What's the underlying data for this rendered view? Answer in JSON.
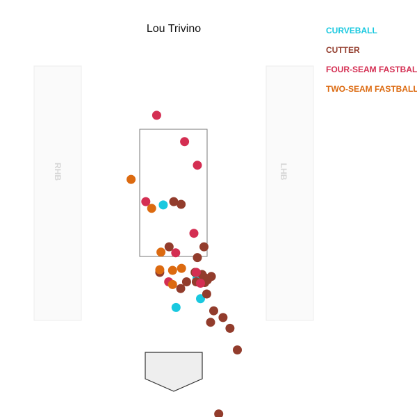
{
  "colors": {
    "CURVEBALL": "#19c8df",
    "CUTTER": "#923c2c",
    "FOUR-SEAM FASTBALL": "#d42e52",
    "TWO-SEAM FASTBALL": "#dc6a10"
  },
  "chart_data": {
    "type": "scatter",
    "title": "Lou Trivino",
    "xlabel": "",
    "ylabel": "",
    "xlim": [
      -2.5,
      2.5
    ],
    "ylim": [
      0,
      5
    ],
    "grid": false,
    "legend_position": "top-right",
    "batter_boxes": [
      "RHB",
      "LHB"
    ],
    "legend": [
      "CURVEBALL",
      "CUTTER",
      "FOUR-SEAM FASTBALL",
      "TWO-SEAM FASTBALL"
    ],
    "series": [
      {
        "name": "CURVEBALL",
        "points": [
          [
            -0.27,
            2.98
          ],
          [
            0.6,
            1.89
          ],
          [
            0.69,
            1.59
          ],
          [
            0.06,
            1.46
          ]
        ]
      },
      {
        "name": "CUTTER",
        "points": [
          [
            0.0,
            3.03
          ],
          [
            0.19,
            2.99
          ],
          [
            -0.12,
            2.36
          ],
          [
            0.61,
            2.2
          ],
          [
            0.78,
            2.36
          ],
          [
            -0.36,
            1.98
          ],
          [
            0.55,
            1.98
          ],
          [
            0.73,
            1.95
          ],
          [
            0.78,
            1.91
          ],
          [
            0.97,
            1.92
          ],
          [
            0.87,
            1.87
          ],
          [
            0.8,
            1.83
          ],
          [
            0.58,
            1.84
          ],
          [
            0.33,
            1.84
          ],
          [
            0.18,
            1.74
          ],
          [
            0.85,
            1.66
          ],
          [
            1.03,
            1.41
          ],
          [
            1.27,
            1.31
          ],
          [
            0.95,
            1.24
          ],
          [
            1.45,
            1.15
          ],
          [
            1.64,
            0.83
          ],
          [
            1.16,
            -0.12
          ]
        ]
      },
      {
        "name": "FOUR-SEAM FASTBALL",
        "points": [
          [
            -0.44,
            4.31
          ],
          [
            0.28,
            3.92
          ],
          [
            0.61,
            3.57
          ],
          [
            -0.72,
            3.03
          ],
          [
            0.52,
            2.56
          ],
          [
            0.05,
            2.27
          ],
          [
            0.58,
            1.98
          ],
          [
            -0.13,
            1.84
          ],
          [
            0.69,
            1.82
          ]
        ]
      },
      {
        "name": "TWO-SEAM FASTBALL",
        "points": [
          [
            -1.1,
            3.36
          ],
          [
            -0.57,
            2.93
          ],
          [
            -0.33,
            2.28
          ],
          [
            -0.36,
            2.02
          ],
          [
            -0.03,
            2.01
          ],
          [
            0.2,
            2.04
          ],
          [
            -0.03,
            1.8
          ]
        ]
      }
    ]
  }
}
